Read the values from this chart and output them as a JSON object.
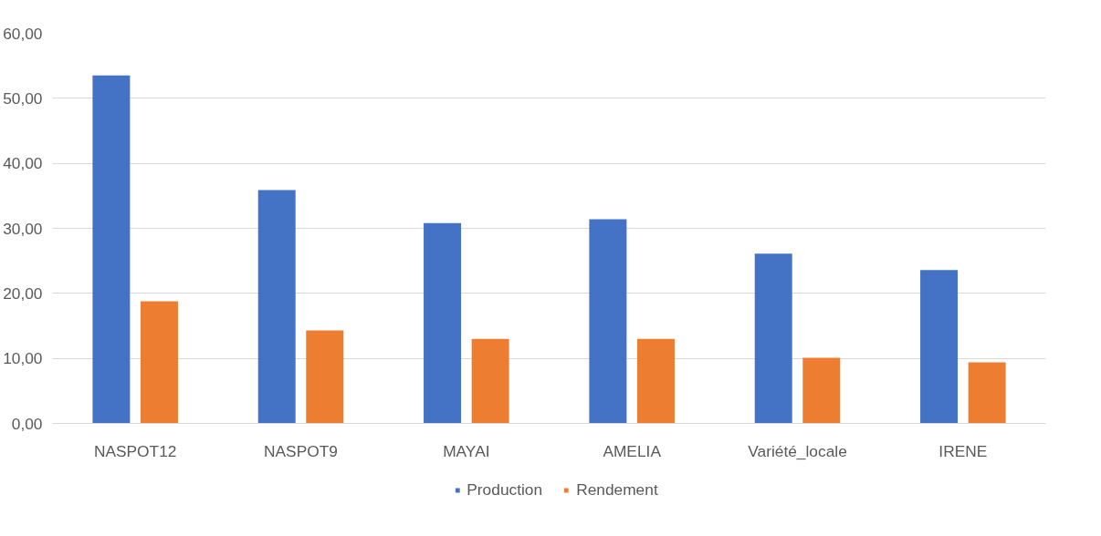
{
  "chart_data": {
    "type": "bar",
    "categories": [
      "NASPOT12",
      "NASPOT9",
      "MAYAI",
      "AMELIA",
      "Variété_locale",
      "IRENE"
    ],
    "series": [
      {
        "name": "Production",
        "color": "#4472c4",
        "values": [
          53.5,
          35.9,
          30.8,
          31.4,
          26.1,
          23.6
        ]
      },
      {
        "name": "Rendement",
        "color": "#ed7d31",
        "values": [
          18.8,
          14.3,
          13.0,
          13.0,
          10.1,
          9.4
        ]
      }
    ],
    "ylim": [
      0,
      60
    ],
    "yticks": [
      {
        "value": 0,
        "label": "0,00"
      },
      {
        "value": 10,
        "label": "10,00"
      },
      {
        "value": 20,
        "label": "20,00"
      },
      {
        "value": 30,
        "label": "30,00"
      },
      {
        "value": 40,
        "label": "40,00"
      },
      {
        "value": 50,
        "label": "50,00"
      },
      {
        "value": 60,
        "label": "60,00"
      }
    ],
    "grid": "y",
    "legend": "bottom"
  }
}
